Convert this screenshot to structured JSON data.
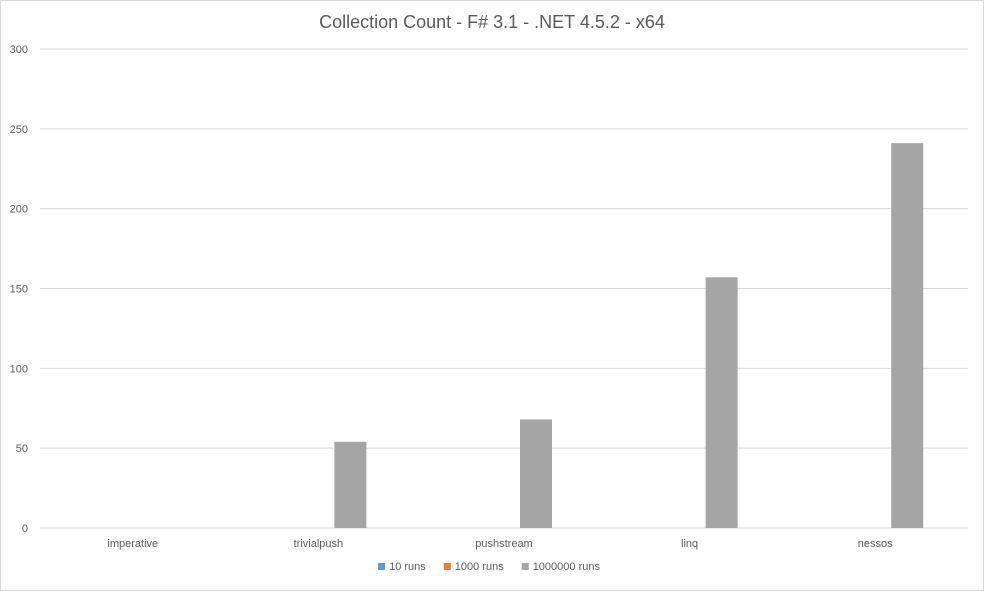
{
  "chart_data": {
    "type": "bar",
    "title": "Collection Count - F# 3.1 - .NET 4.5.2 - x64",
    "categories": [
      "imperative",
      "trivialpush",
      "pushstream",
      "linq",
      "nessos"
    ],
    "series": [
      {
        "name": "10 runs",
        "color": "#5b9bd5",
        "values": [
          0,
          0,
          0,
          0,
          0
        ]
      },
      {
        "name": "1000 runs",
        "color": "#ed7d31",
        "values": [
          0,
          0,
          0,
          0,
          0
        ]
      },
      {
        "name": "1000000 runs",
        "color": "#a5a5a5",
        "values": [
          0,
          54,
          68,
          157,
          241
        ]
      }
    ],
    "ylim": [
      0,
      300
    ],
    "yticks": [
      0,
      50,
      100,
      150,
      200,
      250,
      300
    ],
    "grid": true,
    "legend_position": "bottom"
  }
}
